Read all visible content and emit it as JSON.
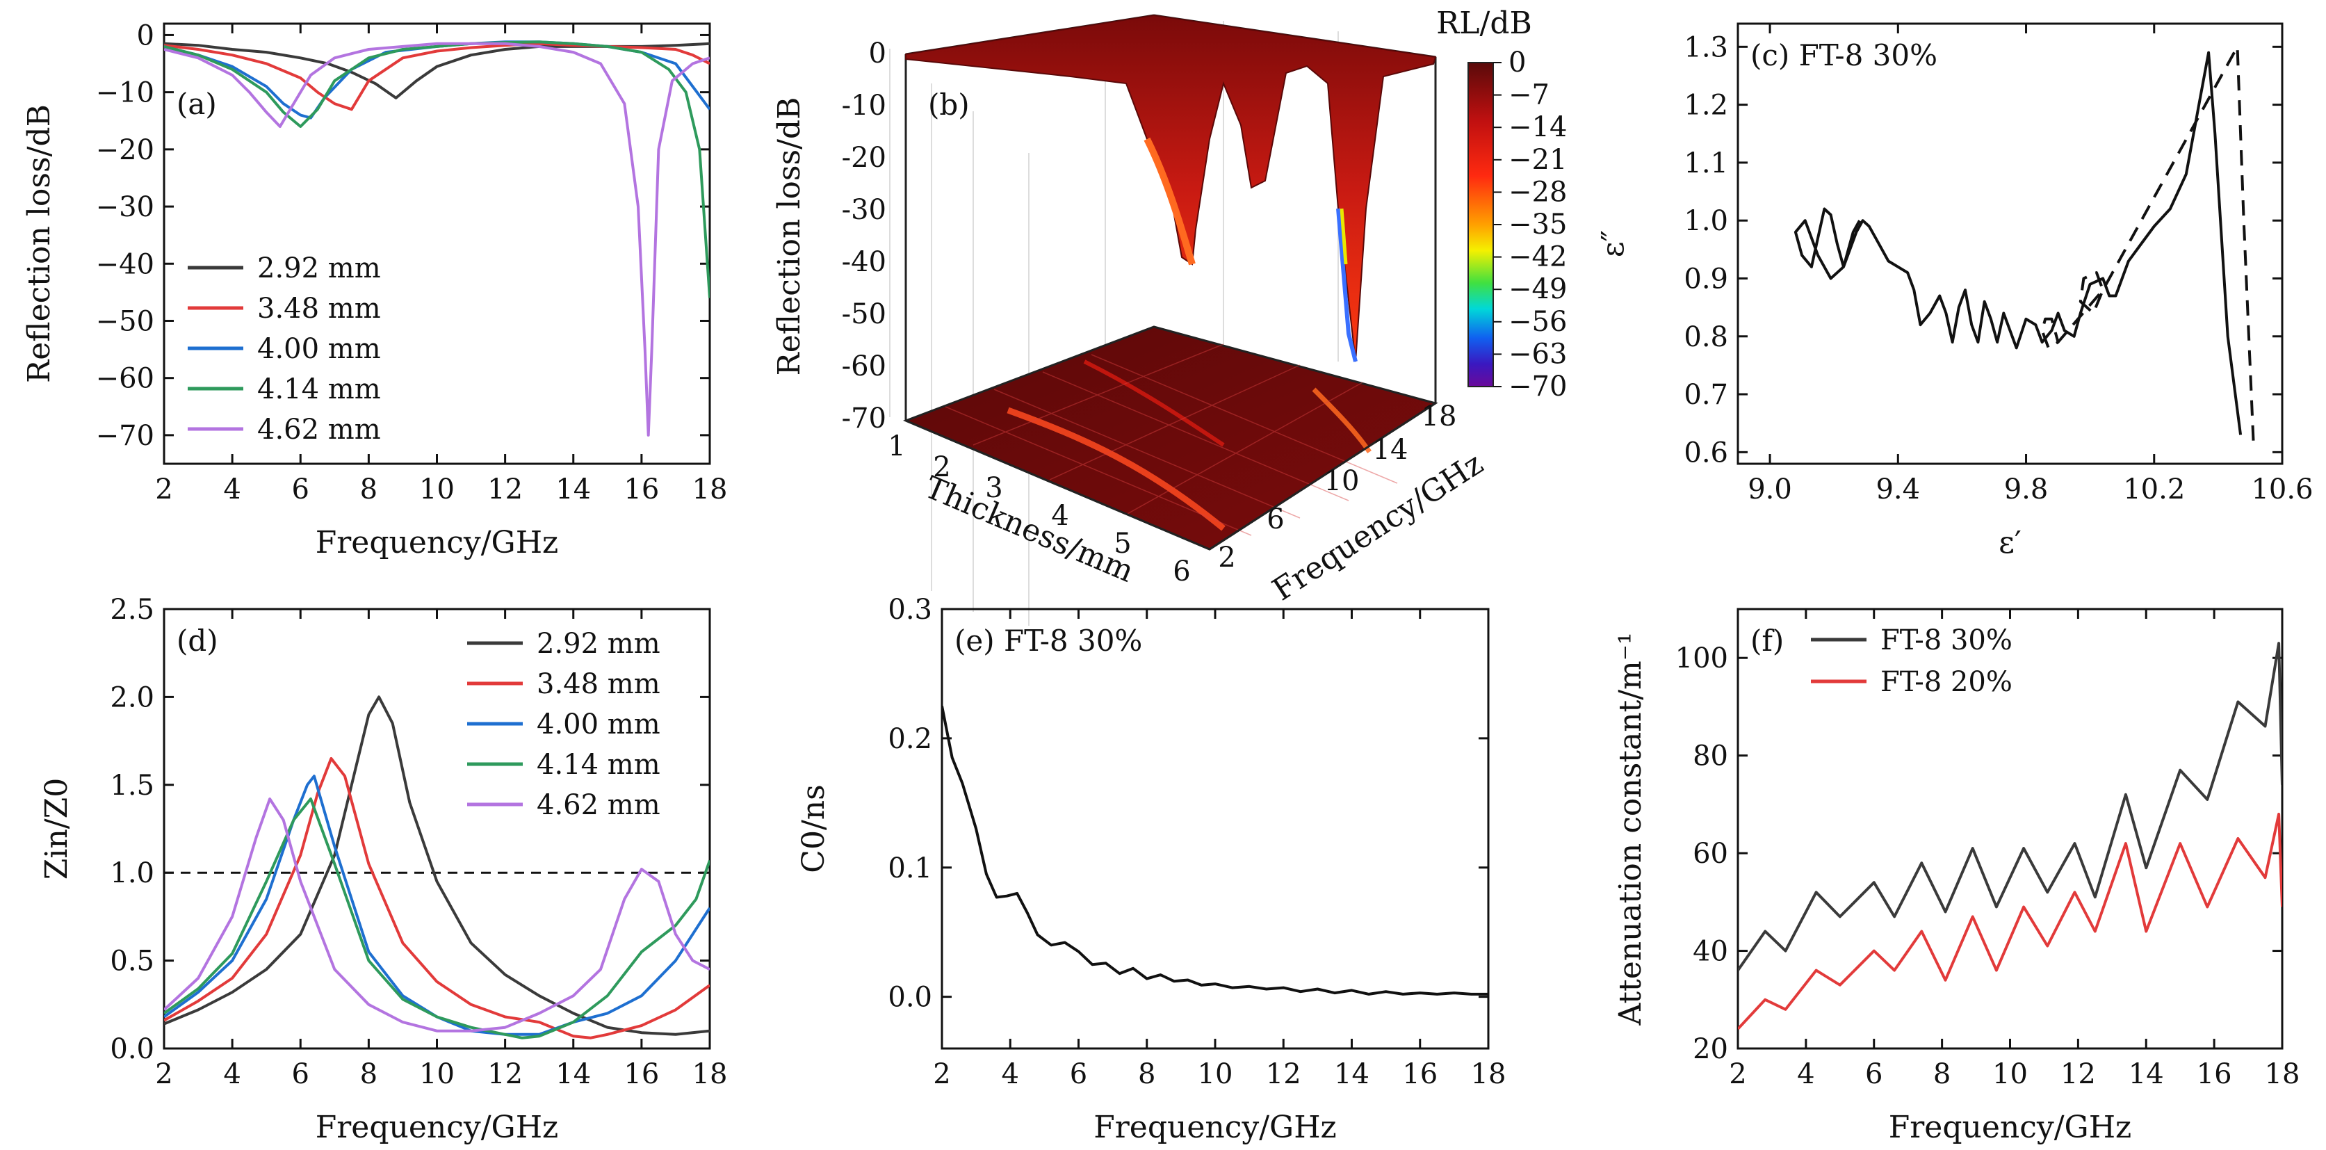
{
  "chart_data": [
    {
      "id": "a",
      "type": "line",
      "panel_label": "(a)",
      "xlabel": "Frequency/GHz",
      "ylabel": "Reflection loss/dB",
      "xlim": [
        2,
        18
      ],
      "ylim": [
        -75,
        2
      ],
      "x_ticks": [
        2,
        4,
        6,
        8,
        10,
        12,
        14,
        16,
        18
      ],
      "y_ticks": [
        0,
        -10,
        -20,
        -30,
        -40,
        -50,
        -60,
        -70
      ],
      "legend_position": "bottom-left",
      "series": [
        {
          "name": "2.92 mm",
          "color": "#3a3a3a",
          "x": [
            2,
            3,
            4,
            5,
            6,
            6.8,
            7.5,
            8.2,
            8.8,
            9.4,
            10,
            11,
            12,
            13,
            14,
            15,
            16,
            17,
            18
          ],
          "y": [
            -1.5,
            -1.8,
            -2.5,
            -3.0,
            -4.0,
            -5.0,
            -6.5,
            -8.5,
            -11.0,
            -8.0,
            -5.5,
            -3.5,
            -2.5,
            -2.0,
            -2.0,
            -2.0,
            -2.0,
            -1.8,
            -1.5
          ]
        },
        {
          "name": "3.48 mm",
          "color": "#e23a3a",
          "x": [
            2,
            3,
            4,
            5,
            6,
            6.5,
            7,
            7.5,
            8,
            9,
            10,
            11,
            12,
            13,
            14,
            15,
            16,
            17,
            17.5,
            18
          ],
          "y": [
            -1.8,
            -2.5,
            -3.5,
            -5.0,
            -7.5,
            -10.0,
            -12.0,
            -13.0,
            -8.0,
            -4.0,
            -2.8,
            -2.2,
            -1.8,
            -1.5,
            -1.8,
            -2.0,
            -2.2,
            -2.5,
            -3.5,
            -5.0
          ]
        },
        {
          "name": "4.00 mm",
          "color": "#1e6fd0",
          "x": [
            2,
            3,
            4,
            5,
            5.5,
            6,
            6.3,
            6.7,
            7.5,
            8.5,
            10,
            11,
            12,
            13,
            14,
            15,
            16,
            17,
            17.5,
            18
          ],
          "y": [
            -2.0,
            -3.5,
            -5.5,
            -9.0,
            -12.0,
            -14.0,
            -14.5,
            -11.0,
            -6.0,
            -3.0,
            -2.0,
            -1.5,
            -1.2,
            -1.2,
            -1.5,
            -2.0,
            -3.0,
            -5.0,
            -9.0,
            -13.0
          ]
        },
        {
          "name": "4.14 mm",
          "color": "#2e9a5c",
          "x": [
            2,
            3,
            4,
            5,
            5.5,
            6,
            6.5,
            7,
            8,
            9,
            10,
            11,
            12,
            13,
            14,
            15,
            16,
            16.8,
            17.3,
            17.7,
            18
          ],
          "y": [
            -2.0,
            -3.5,
            -6.0,
            -10.0,
            -13.5,
            -16.0,
            -13.0,
            -8.0,
            -4.0,
            -2.5,
            -2.0,
            -1.5,
            -1.3,
            -1.2,
            -1.5,
            -2.0,
            -3.0,
            -6.0,
            -10.0,
            -20.0,
            -46.0
          ]
        },
        {
          "name": "4.62 mm",
          "color": "#b374e0",
          "x": [
            2,
            3,
            4,
            4.5,
            5,
            5.4,
            5.8,
            6.3,
            7,
            8,
            9,
            10,
            11,
            12,
            13,
            14,
            14.8,
            15.5,
            15.9,
            16.1,
            16.2,
            16.3,
            16.5,
            16.9,
            17.5,
            18
          ],
          "y": [
            -2.5,
            -4.0,
            -7.0,
            -10.0,
            -13.5,
            -16.0,
            -12.0,
            -7.0,
            -4.0,
            -2.5,
            -2.0,
            -1.5,
            -1.5,
            -1.5,
            -2.0,
            -3.0,
            -5.0,
            -12.0,
            -30.0,
            -55.0,
            -70.0,
            -55.0,
            -20.0,
            -8.0,
            -5.0,
            -4.0
          ]
        }
      ]
    },
    {
      "id": "b",
      "type": "heatmap",
      "panel_label": "(b)",
      "xlabel": "Thickness/mm",
      "ylabel": "Frequency/GHz",
      "zlabel": "Reflection loss/dB",
      "colorbar_title": "RL/dB",
      "x_ticks": [
        1,
        2,
        3,
        4,
        5,
        6
      ],
      "y_ticks": [
        2,
        6,
        10,
        14,
        18
      ],
      "z_ticks": [
        0,
        -10,
        -20,
        -30,
        -40,
        -50,
        -60,
        -70
      ],
      "colorbar_ticks": [
        0,
        -7,
        -14,
        -21,
        -28,
        -35,
        -42,
        -49,
        -56,
        -63,
        -70
      ],
      "zlim": [
        -70,
        0
      ],
      "surface": "3D surface of RL vs thickness (1-6 mm) and frequency (2-18 GHz) with projected contour map"
    },
    {
      "id": "c",
      "type": "line",
      "panel_label": "(c) FT-8 30%",
      "xlabel": "ε′",
      "ylabel": "ε″",
      "xlim": [
        8.9,
        10.6
      ],
      "ylim": [
        0.58,
        1.34
      ],
      "x_ticks": [
        9.0,
        9.4,
        9.8,
        10.2,
        10.6
      ],
      "y_ticks": [
        0.6,
        0.7,
        0.8,
        0.9,
        1.0,
        1.1,
        1.2,
        1.3
      ],
      "series": [
        {
          "style": "solid",
          "color": "#111111",
          "x": [
            10.47,
            10.43,
            10.39,
            10.37,
            10.34,
            10.3,
            10.25,
            10.2,
            10.16,
            10.12,
            10.1,
            10.08,
            10.06,
            10.04,
            10.0,
            9.97,
            9.95,
            9.92,
            9.9,
            9.88,
            9.85,
            9.83,
            9.8,
            9.77,
            9.75,
            9.73,
            9.71,
            9.69,
            9.67,
            9.65,
            9.63,
            9.61,
            9.59,
            9.57,
            9.55,
            9.53,
            9.5,
            9.47,
            9.45,
            9.43,
            9.4,
            9.37,
            9.35,
            9.33,
            9.31,
            9.29,
            9.27,
            9.25,
            9.23,
            9.21,
            9.19,
            9.17,
            9.15,
            9.13,
            9.1,
            9.08,
            9.11,
            9.15,
            9.19,
            9.23,
            9.26,
            9.28
          ],
          "y": [
            0.63,
            0.8,
            1.15,
            1.29,
            1.2,
            1.08,
            1.02,
            0.99,
            0.96,
            0.93,
            0.9,
            0.87,
            0.87,
            0.9,
            0.89,
            0.84,
            0.8,
            0.81,
            0.84,
            0.81,
            0.79,
            0.82,
            0.83,
            0.78,
            0.81,
            0.84,
            0.79,
            0.83,
            0.86,
            0.79,
            0.82,
            0.88,
            0.85,
            0.79,
            0.84,
            0.87,
            0.84,
            0.82,
            0.88,
            0.91,
            0.92,
            0.93,
            0.95,
            0.97,
            0.99,
            1.0,
            0.98,
            0.95,
            0.92,
            0.96,
            1.01,
            1.02,
            0.97,
            0.92,
            0.94,
            0.98,
            1.0,
            0.94,
            0.9,
            0.92,
            0.98,
            1.0
          ]
        },
        {
          "style": "dashed",
          "color": "#111111",
          "x": [
            10.51,
            10.48,
            10.46,
            10.04,
            10.01,
            9.97,
            9.98,
            10.02,
            10.04,
            9.9,
            9.87,
            9.85,
            9.86,
            9.88,
            9.9
          ],
          "y": [
            0.62,
            1.0,
            1.3,
            0.88,
            0.84,
            0.86,
            0.9,
            0.91,
            0.88,
            0.79,
            0.78,
            0.81,
            0.83,
            0.83,
            0.79
          ]
        }
      ]
    },
    {
      "id": "d",
      "type": "line",
      "panel_label": "(d)",
      "xlabel": "Frequency/GHz",
      "ylabel": "Zin/Z0",
      "xlim": [
        2,
        18
      ],
      "ylim": [
        0,
        2.5
      ],
      "x_ticks": [
        2,
        4,
        6,
        8,
        10,
        12,
        14,
        16,
        18
      ],
      "y_ticks": [
        0,
        0.5,
        1.0,
        1.5,
        2.0,
        2.5
      ],
      "reference_line": 1.0,
      "legend_position": "top-right",
      "series": [
        {
          "name": "2.92 mm",
          "color": "#3a3a3a",
          "x": [
            2,
            3,
            4,
            5,
            6,
            7,
            7.5,
            8,
            8.3,
            8.7,
            9.2,
            10,
            11,
            12,
            13,
            14,
            15,
            16,
            17,
            18
          ],
          "y": [
            0.14,
            0.22,
            0.32,
            0.45,
            0.65,
            1.1,
            1.5,
            1.9,
            2.0,
            1.85,
            1.4,
            0.95,
            0.6,
            0.42,
            0.3,
            0.2,
            0.12,
            0.09,
            0.08,
            0.1
          ]
        },
        {
          "name": "3.48 mm",
          "color": "#e23a3a",
          "x": [
            2,
            3,
            4,
            5,
            6,
            6.5,
            6.9,
            7.3,
            8,
            9,
            10,
            11,
            12,
            13,
            14,
            14.5,
            15,
            16,
            17,
            18
          ],
          "y": [
            0.16,
            0.27,
            0.4,
            0.65,
            1.1,
            1.45,
            1.65,
            1.55,
            1.05,
            0.6,
            0.38,
            0.25,
            0.18,
            0.15,
            0.07,
            0.06,
            0.08,
            0.13,
            0.22,
            0.36
          ]
        },
        {
          "name": "4.00 mm",
          "color": "#1e6fd0",
          "x": [
            2,
            3,
            4,
            5,
            5.8,
            6.2,
            6.4,
            7,
            8,
            9,
            10,
            11,
            12,
            13,
            14,
            15,
            16,
            17,
            18
          ],
          "y": [
            0.18,
            0.32,
            0.5,
            0.85,
            1.3,
            1.5,
            1.55,
            1.15,
            0.55,
            0.3,
            0.18,
            0.1,
            0.08,
            0.08,
            0.15,
            0.2,
            0.3,
            0.5,
            0.8
          ]
        },
        {
          "name": "4.14 mm",
          "color": "#2e9a5c",
          "x": [
            2,
            3,
            4,
            5,
            5.8,
            6.3,
            7,
            8,
            9,
            10,
            11,
            12,
            12.5,
            13,
            14,
            15,
            16,
            17,
            17.6,
            18
          ],
          "y": [
            0.2,
            0.34,
            0.54,
            0.95,
            1.3,
            1.42,
            1.05,
            0.5,
            0.28,
            0.18,
            0.12,
            0.08,
            0.06,
            0.07,
            0.15,
            0.3,
            0.55,
            0.7,
            0.85,
            1.07
          ]
        },
        {
          "name": "4.62 mm",
          "color": "#b374e0",
          "x": [
            2,
            3,
            4,
            4.7,
            5.1,
            5.5,
            6,
            7,
            8,
            9,
            10,
            11,
            12,
            13,
            14,
            14.8,
            15.5,
            16,
            16.5,
            17,
            17.5,
            18
          ],
          "y": [
            0.22,
            0.4,
            0.75,
            1.2,
            1.42,
            1.3,
            0.95,
            0.45,
            0.25,
            0.15,
            0.1,
            0.1,
            0.12,
            0.2,
            0.3,
            0.45,
            0.85,
            1.02,
            0.95,
            0.65,
            0.5,
            0.45
          ]
        }
      ]
    },
    {
      "id": "e",
      "type": "line",
      "panel_label": "(e) FT-8 30%",
      "xlabel": "Frequency/GHz",
      "ylabel": "C0/ns",
      "xlim": [
        2,
        18
      ],
      "ylim": [
        -0.04,
        0.3
      ],
      "x_ticks": [
        2,
        4,
        6,
        8,
        10,
        12,
        14,
        16,
        18
      ],
      "y_ticks": [
        0,
        0.1,
        0.2,
        0.3
      ],
      "series": [
        {
          "color": "#111111",
          "x": [
            2,
            2.3,
            2.6,
            3.0,
            3.3,
            3.6,
            3.9,
            4.2,
            4.5,
            4.8,
            5.2,
            5.6,
            6.0,
            6.4,
            6.8,
            7.2,
            7.6,
            8.0,
            8.4,
            8.8,
            9.2,
            9.6,
            10,
            10.5,
            11,
            11.5,
            12,
            12.5,
            13,
            13.5,
            14,
            14.5,
            15,
            15.5,
            16,
            16.5,
            17,
            17.5,
            18
          ],
          "y": [
            0.225,
            0.185,
            0.165,
            0.13,
            0.095,
            0.077,
            0.078,
            0.08,
            0.065,
            0.048,
            0.04,
            0.042,
            0.035,
            0.025,
            0.026,
            0.018,
            0.022,
            0.014,
            0.017,
            0.012,
            0.013,
            0.009,
            0.01,
            0.007,
            0.008,
            0.006,
            0.007,
            0.004,
            0.006,
            0.003,
            0.005,
            0.002,
            0.004,
            0.002,
            0.003,
            0.002,
            0.003,
            0.002,
            0.002
          ]
        }
      ]
    },
    {
      "id": "f",
      "type": "line",
      "panel_label": "(f)",
      "xlabel": "Frequency/GHz",
      "ylabel": "Attenuation constant/m⁻¹",
      "xlim": [
        2,
        18
      ],
      "ylim": [
        20,
        110
      ],
      "x_ticks": [
        2,
        4,
        6,
        8,
        10,
        12,
        14,
        16,
        18
      ],
      "y_ticks": [
        20,
        40,
        60,
        80,
        100
      ],
      "legend_position": "top-left",
      "series": [
        {
          "name": "FT-8 30%",
          "color": "#3a3a3a",
          "x": [
            2,
            2.8,
            3.4,
            4.3,
            5.0,
            6.0,
            6.6,
            7.4,
            8.1,
            8.9,
            9.6,
            10.4,
            11.1,
            11.9,
            12.5,
            13.4,
            14.0,
            15.0,
            15.8,
            16.7,
            17.5,
            17.9,
            18
          ],
          "y": [
            36,
            44,
            40,
            52,
            47,
            54,
            47,
            58,
            48,
            61,
            49,
            61,
            52,
            62,
            51,
            72,
            57,
            77,
            71,
            91,
            86,
            103,
            74
          ]
        },
        {
          "name": "FT-8 20%",
          "color": "#e23a3a",
          "x": [
            2,
            2.8,
            3.4,
            4.3,
            5.0,
            6.0,
            6.6,
            7.4,
            8.1,
            8.9,
            9.6,
            10.4,
            11.1,
            11.9,
            12.5,
            13.4,
            14.0,
            15.0,
            15.8,
            16.7,
            17.5,
            17.9,
            18
          ],
          "y": [
            24,
            30,
            28,
            36,
            33,
            40,
            36,
            44,
            34,
            47,
            36,
            49,
            41,
            52,
            44,
            62,
            44,
            62,
            49,
            63,
            55,
            68,
            49
          ]
        }
      ]
    }
  ]
}
